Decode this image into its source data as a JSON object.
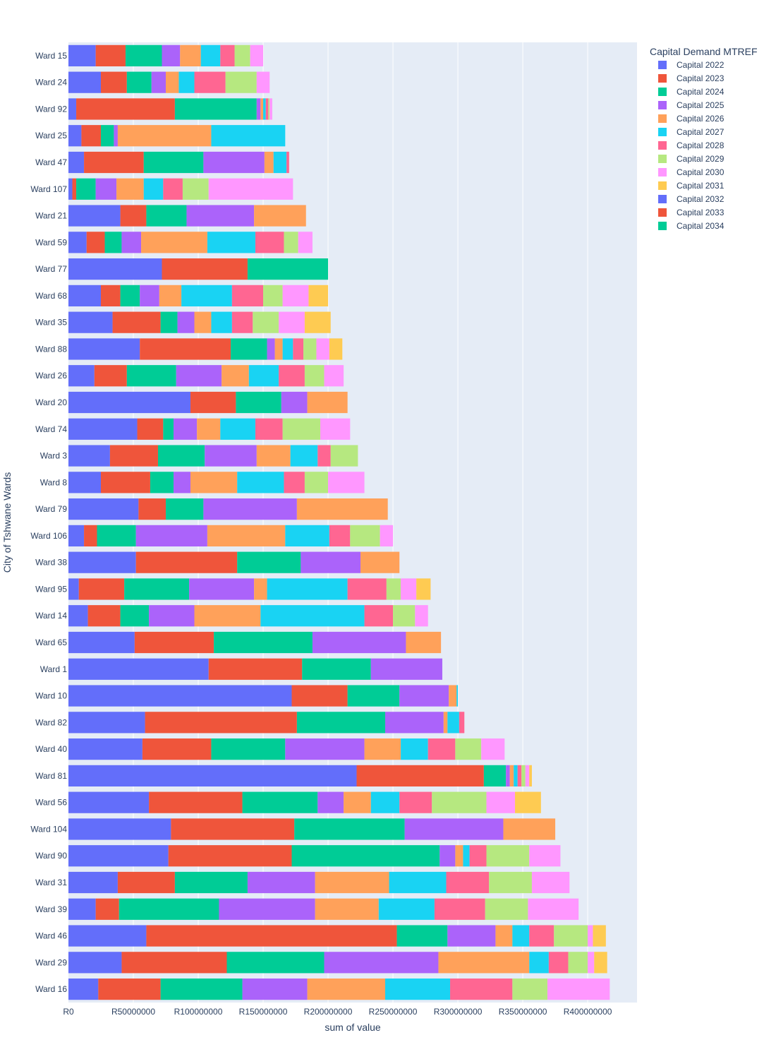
{
  "chart_data": {
    "type": "bar",
    "orientation": "horizontal",
    "barmode": "stack",
    "xlabel": "sum of value",
    "ylabel": "City of Tshwane Wards",
    "legend_title": "Capital Demand MTREF",
    "legend_position": "top-right",
    "grid": true,
    "xlim": [
      0,
      438000000
    ],
    "x_ticks": [
      0,
      50000000,
      100000000,
      150000000,
      200000000,
      250000000,
      300000000,
      350000000,
      400000000
    ],
    "x_tick_labels": [
      "R0",
      "R50000000",
      "R100000000",
      "R150000000",
      "R200000000",
      "R250000000",
      "R300000000",
      "R350000000",
      "R400000000"
    ],
    "categories": [
      "Ward 15",
      "Ward 24",
      "Ward 92",
      "Ward 25",
      "Ward 47",
      "Ward 107",
      "Ward 21",
      "Ward 59",
      "Ward 77",
      "Ward 68",
      "Ward 35",
      "Ward 88",
      "Ward 26",
      "Ward 20",
      "Ward 74",
      "Ward 3",
      "Ward 8",
      "Ward 79",
      "Ward 106",
      "Ward 38",
      "Ward 95",
      "Ward 14",
      "Ward 65",
      "Ward 1",
      "Ward 10",
      "Ward 82",
      "Ward 40",
      "Ward 81",
      "Ward 56",
      "Ward 104",
      "Ward 90",
      "Ward 31",
      "Ward 39",
      "Ward 46",
      "Ward 29",
      "Ward 16"
    ],
    "series": [
      {
        "name": "Capital 2022",
        "color": "#636efa",
        "values": [
          21000000,
          25000000,
          6000000,
          10000000,
          12000000,
          3000000,
          40000000,
          14000000,
          72000000,
          25000000,
          34000000,
          55000000,
          20000000,
          94000000,
          53000000,
          32000000,
          25000000,
          54000000,
          12000000,
          52000000,
          8000000,
          15000000,
          51000000,
          108000000,
          172000000,
          59000000,
          57000000,
          222000000,
          62000000,
          79000000,
          77000000,
          38000000,
          21000000,
          60000000,
          41000000,
          23000000
        ]
      },
      {
        "name": "Capital 2023",
        "color": "#EF553B",
        "values": [
          23000000,
          20000000,
          76000000,
          15000000,
          46000000,
          3000000,
          20000000,
          14000000,
          66000000,
          15000000,
          37000000,
          70000000,
          25000000,
          35000000,
          20000000,
          37000000,
          38000000,
          21000000,
          10000000,
          78000000,
          35000000,
          25000000,
          61000000,
          72000000,
          43000000,
          117000000,
          53000000,
          98000000,
          72000000,
          95000000,
          95000000,
          44000000,
          18000000,
          193000000,
          81000000,
          48000000
        ]
      },
      {
        "name": "Capital 2024",
        "color": "#00cc96",
        "values": [
          28000000,
          19000000,
          63000000,
          10000000,
          46000000,
          15000000,
          31000000,
          13000000,
          62000000,
          15000000,
          13000000,
          28000000,
          38000000,
          35000000,
          8000000,
          36000000,
          18000000,
          29000000,
          30000000,
          49000000,
          50000000,
          22000000,
          76000000,
          53000000,
          40000000,
          68000000,
          57000000,
          17000000,
          58000000,
          85000000,
          114000000,
          56000000,
          77000000,
          39000000,
          75000000,
          63000000
        ]
      },
      {
        "name": "Capital 2025",
        "color": "#ab63fa",
        "values": [
          14000000,
          11000000,
          3000000,
          3000000,
          47000000,
          16000000,
          52000000,
          15000000,
          0,
          15000000,
          13000000,
          6000000,
          35000000,
          20000000,
          18000000,
          40000000,
          13000000,
          72000000,
          55000000,
          46000000,
          50000000,
          35000000,
          72000000,
          55000000,
          38000000,
          45000000,
          61000000,
          3000000,
          20000000,
          76000000,
          12000000,
          52000000,
          74000000,
          37000000,
          88000000,
          50000000
        ]
      },
      {
        "name": "Capital 2026",
        "color": "#FFA15A",
        "values": [
          16000000,
          10000000,
          2000000,
          72000000,
          7000000,
          21000000,
          40000000,
          51000000,
          0,
          17000000,
          13000000,
          6000000,
          21000000,
          31000000,
          18000000,
          26000000,
          36000000,
          70000000,
          60000000,
          30000000,
          10000000,
          51000000,
          27000000,
          0,
          6000000,
          3000000,
          28000000,
          3000000,
          21000000,
          40000000,
          6000000,
          57000000,
          49000000,
          13000000,
          70000000,
          60000000
        ]
      },
      {
        "name": "Capital 2027",
        "color": "#19d3f3",
        "values": [
          15000000,
          12000000,
          2000000,
          57000000,
          10000000,
          15000000,
          0,
          37000000,
          0,
          39000000,
          16000000,
          8000000,
          23000000,
          0,
          27000000,
          21000000,
          36000000,
          0,
          34000000,
          0,
          62000000,
          80000000,
          0,
          0,
          1000000,
          9000000,
          21000000,
          3000000,
          22000000,
          0,
          5000000,
          44000000,
          43000000,
          13000000,
          15000000,
          50000000
        ]
      },
      {
        "name": "Capital 2028",
        "color": "#FF6692",
        "values": [
          11000000,
          24000000,
          2000000,
          0,
          2000000,
          15000000,
          0,
          22000000,
          0,
          24000000,
          16000000,
          8000000,
          20000000,
          0,
          21000000,
          10000000,
          16000000,
          0,
          16000000,
          0,
          30000000,
          22000000,
          0,
          0,
          0,
          4000000,
          21000000,
          3000000,
          25000000,
          0,
          13000000,
          33000000,
          39000000,
          19000000,
          15000000,
          48000000
        ]
      },
      {
        "name": "Capital 2029",
        "color": "#B6E880",
        "values": [
          12000000,
          24000000,
          1000000,
          0,
          0,
          20000000,
          0,
          11000000,
          0,
          15000000,
          20000000,
          10000000,
          15000000,
          0,
          29000000,
          21000000,
          18000000,
          0,
          23000000,
          0,
          11000000,
          17000000,
          0,
          0,
          0,
          0,
          20000000,
          3000000,
          42000000,
          0,
          33000000,
          33000000,
          33000000,
          26000000,
          15000000,
          27000000
        ]
      },
      {
        "name": "Capital 2030",
        "color": "#FF97FF",
        "values": [
          10000000,
          10000000,
          2000000,
          0,
          0,
          65000000,
          0,
          11000000,
          0,
          20000000,
          20000000,
          10000000,
          15000000,
          0,
          23000000,
          0,
          28000000,
          0,
          10000000,
          0,
          12000000,
          10000000,
          0,
          0,
          0,
          0,
          18000000,
          3000000,
          22000000,
          0,
          24000000,
          29000000,
          39000000,
          4000000,
          5000000,
          48000000
        ]
      },
      {
        "name": "Capital 2031",
        "color": "#FECB52",
        "values": [
          0,
          0,
          0,
          0,
          0,
          0,
          0,
          0,
          0,
          15000000,
          20000000,
          10000000,
          0,
          0,
          0,
          0,
          0,
          0,
          0,
          0,
          11000000,
          0,
          0,
          0,
          0,
          0,
          0,
          2000000,
          20000000,
          0,
          0,
          0,
          0,
          10000000,
          10000000,
          0
        ]
      },
      {
        "name": "Capital 2032",
        "color": "#636efa",
        "values": [
          0,
          0,
          0,
          0,
          0,
          0,
          0,
          0,
          0,
          0,
          0,
          0,
          0,
          0,
          0,
          0,
          0,
          0,
          0,
          0,
          0,
          0,
          0,
          0,
          0,
          0,
          0,
          0,
          0,
          0,
          0,
          0,
          0,
          0,
          0,
          0
        ]
      },
      {
        "name": "Capital 2033",
        "color": "#EF553B",
        "values": [
          0,
          0,
          0,
          0,
          0,
          0,
          0,
          0,
          0,
          0,
          0,
          0,
          0,
          0,
          0,
          0,
          0,
          0,
          0,
          0,
          0,
          0,
          0,
          0,
          0,
          0,
          0,
          0,
          0,
          0,
          0,
          0,
          0,
          0,
          0,
          0
        ]
      },
      {
        "name": "Capital 2034",
        "color": "#00cc96",
        "values": [
          0,
          0,
          0,
          0,
          0,
          0,
          0,
          0,
          0,
          0,
          0,
          0,
          0,
          0,
          0,
          0,
          0,
          0,
          0,
          0,
          0,
          0,
          0,
          0,
          0,
          0,
          0,
          0,
          0,
          0,
          0,
          0,
          0,
          0,
          0,
          0
        ]
      }
    ]
  }
}
